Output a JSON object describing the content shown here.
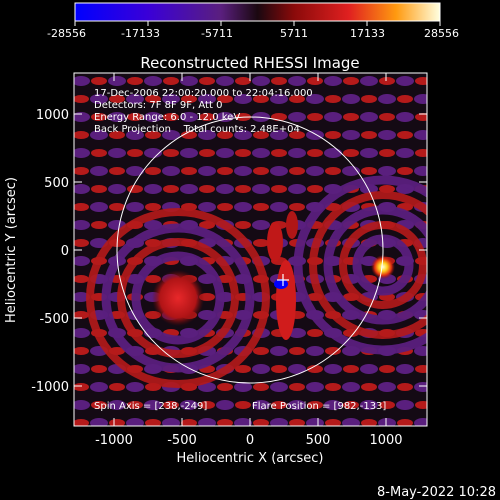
{
  "colorbar": {
    "ticks": [
      "-28556",
      "-17133",
      "-5711",
      "5711",
      "17133",
      "28556"
    ]
  },
  "plot": {
    "title": "Reconstructed RHESSI Image",
    "xlabel": "Heliocentric X (arcsec)",
    "ylabel": "Heliocentric Y (arcsec)",
    "xticks": [
      "-1000",
      "-500",
      "0",
      "500",
      "1000"
    ],
    "yticks": [
      "1000",
      "500",
      "0",
      "-500",
      "-1000"
    ]
  },
  "annotations": {
    "line1": "17-Dec-2006 22:00:20.000 to 22:04:16.000",
    "line2": "Detectors: 7F 8F 9F, Att 0",
    "line3": "Energy Range: 6.0 - 12.0 keV",
    "line4": "Back Projection    Total counts: 2.48E+04",
    "spin_axis": "Spin Axis = [238,-249]",
    "flare_position": "Flare Position = [982,-133]"
  },
  "footer": {
    "date": "8-May-2022 10:28"
  },
  "colors": {
    "background": "#000000",
    "positive_peak": "#ffff80",
    "positive_mid": "#d81e1e",
    "negative_low": "#5a1f7e",
    "negative_peak": "#0000ff",
    "limb": "#ffffff"
  }
}
